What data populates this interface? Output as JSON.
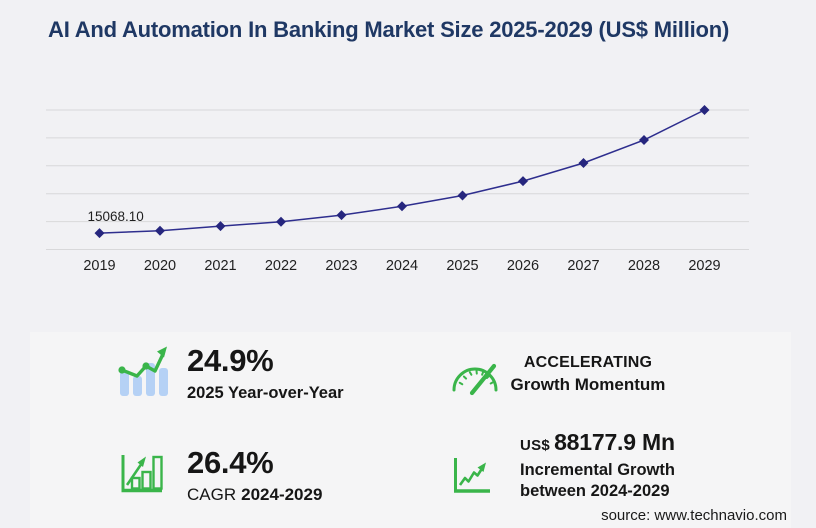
{
  "title": "AI And Automation In Banking Market Size 2025-2029 (US$ Million)",
  "source": "source: www.technavio.com",
  "chart_data": {
    "type": "line",
    "x": [
      "2019",
      "2020",
      "2021",
      "2022",
      "2023",
      "2024",
      "2025",
      "2026",
      "2027",
      "2028",
      "2029"
    ],
    "values": [
      15068.1,
      17100,
      21400,
      25400,
      31500,
      39604.6,
      49466.1,
      62700,
      79200,
      100300,
      127782.5
    ],
    "displayed_point_label": {
      "index": 0,
      "text": "15068.10"
    },
    "ylabel": "",
    "xlabel": "",
    "ylim": [
      0,
      127782.5
    ],
    "gridline_count": 6,
    "grid": "horizontal-only",
    "legend": "none",
    "marker": "diamond"
  },
  "stats": {
    "yoy": {
      "value": "24.9%",
      "label": "2025 Year-over-Year"
    },
    "momentum": {
      "line1": "ACCELERATING",
      "line2": "Growth Momentum"
    },
    "cagr": {
      "value": "26.4%",
      "prefix": "CAGR",
      "range": "2024-2029"
    },
    "incremental": {
      "currency": "US$",
      "value": "88177.9 Mn",
      "line1": "Incremental Growth",
      "line2": "between 2024-2029"
    }
  },
  "icons": {
    "yoy": "bar-chart-trend-icon",
    "momentum": "speedometer-icon",
    "cagr": "bar-chart-arrow-icon",
    "incremental": "axis-growth-icon"
  },
  "colors": {
    "title": "#1f3864",
    "line": "#2e2e8e",
    "marker": "#26267e",
    "gridline": "#d8d8da",
    "green": "#3ab54a",
    "bar_blue": "#b5d1f5",
    "text": "#161616",
    "page_bg": "#f1f1f4",
    "panel_bg": "#f5f5f6"
  }
}
